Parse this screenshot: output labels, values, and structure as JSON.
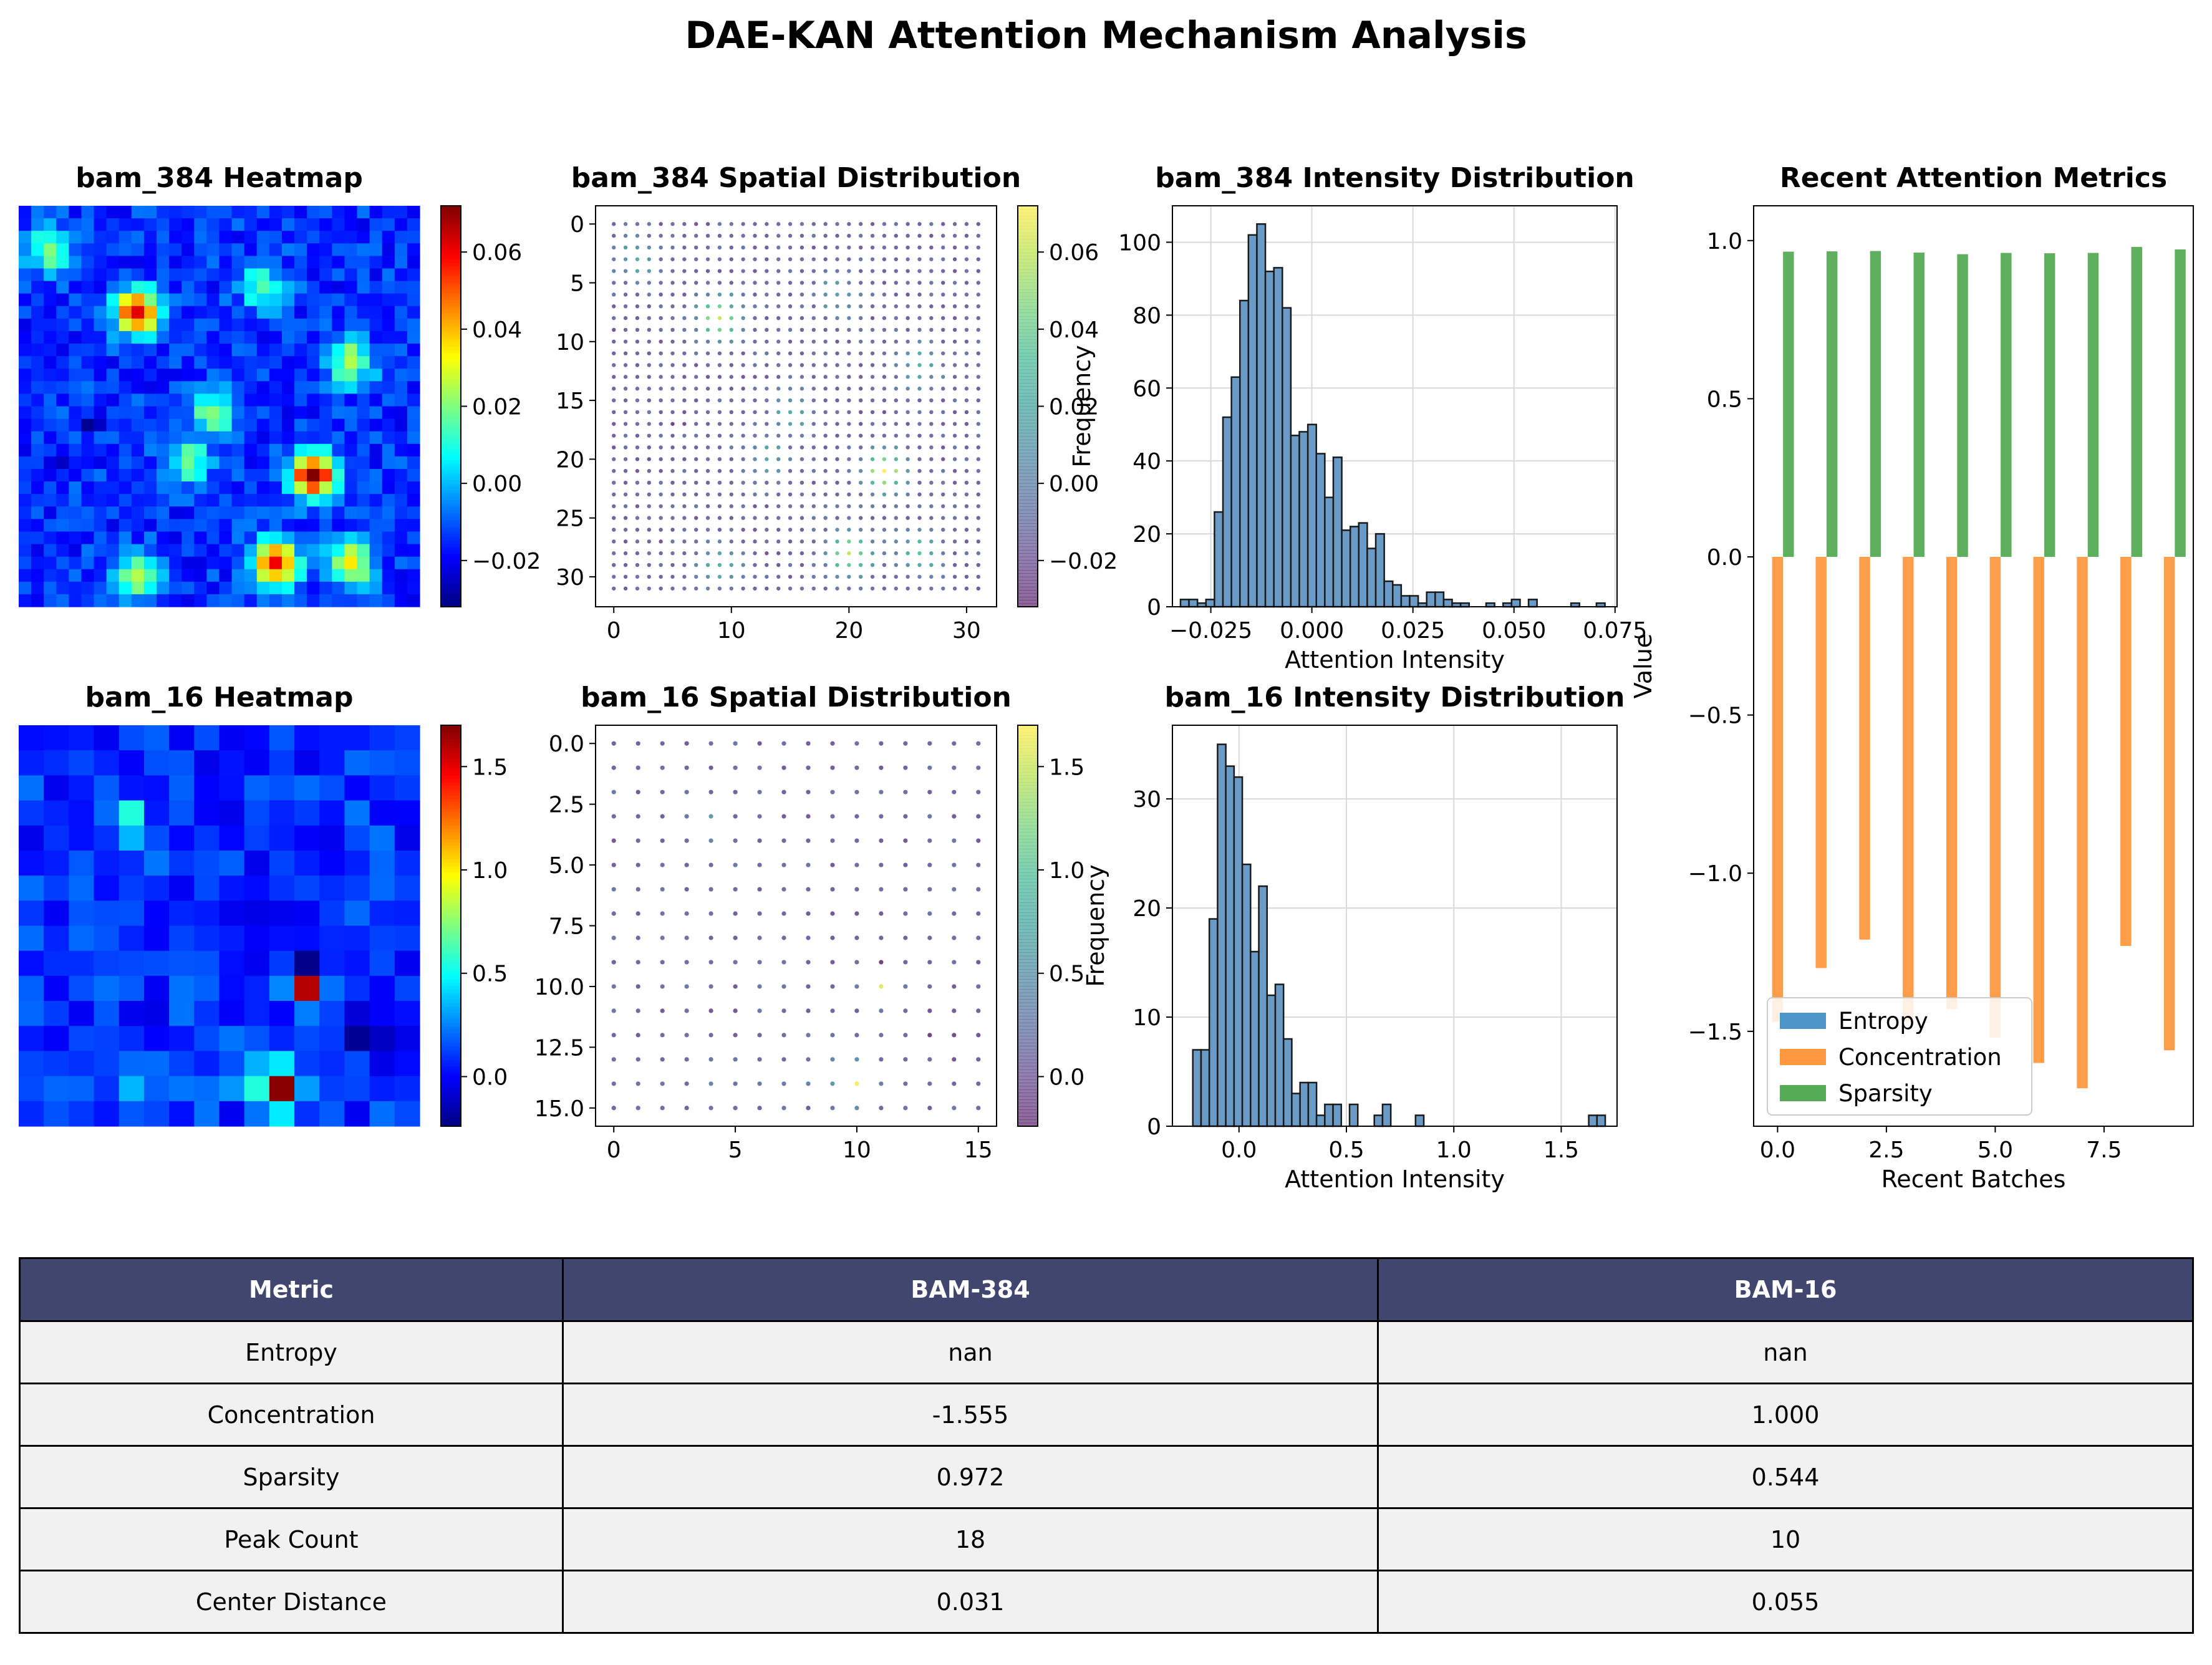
{
  "title": "DAE-KAN Attention Mechanism Analysis",
  "colors": {
    "entropy": "#4c95c8",
    "concentration": "#ff983f",
    "sparsity": "#55ac55",
    "table_header": "#40466e",
    "table_cell": "#f1f1f2",
    "hist_fill": "#6a9ac6"
  },
  "chart_data": [
    {
      "id": "heat384",
      "type": "heatmap",
      "title": "bam_384 Heatmap",
      "grid_size": 32,
      "colormap": "jet",
      "vmin": -0.032,
      "vmax": 0.072,
      "colorbar_ticks": [
        -0.02,
        0.0,
        0.02,
        0.04,
        0.06
      ],
      "colorbar_tick_labels": [
        "−0.02",
        "0.00",
        "0.02",
        "0.04",
        "0.06"
      ],
      "hotspots": [
        {
          "row": 8,
          "col": 9,
          "value": 0.062
        },
        {
          "row": 21,
          "col": 23,
          "value": 0.072
        },
        {
          "row": 28,
          "col": 20,
          "value": 0.06
        },
        {
          "row": 28,
          "col": 26,
          "value": 0.035
        },
        {
          "row": 16,
          "col": 15,
          "value": 0.02
        },
        {
          "row": 6,
          "col": 19,
          "value": 0.015
        },
        {
          "row": 12,
          "col": 26,
          "value": 0.025
        },
        {
          "row": 3,
          "col": 2,
          "value": 0.02
        },
        {
          "row": 29,
          "col": 9,
          "value": 0.025
        },
        {
          "row": 20,
          "col": 13,
          "value": 0.018
        }
      ],
      "lows": [
        {
          "row": 17,
          "col": 5,
          "value": -0.03
        },
        {
          "row": 20,
          "col": 3,
          "value": -0.025
        }
      ]
    },
    {
      "id": "scat384",
      "type": "scatter",
      "title": "bam_384 Spatial Distribution",
      "grid_size": 32,
      "colormap": "viridis",
      "vmin": -0.032,
      "vmax": 0.072,
      "x_ticks": [
        0,
        10,
        20,
        30
      ],
      "y_ticks": [
        0,
        5,
        10,
        15,
        20,
        25,
        30
      ],
      "colorbar_ticks": [
        -0.02,
        0.0,
        0.02,
        0.04,
        0.06
      ],
      "colorbar_tick_labels": [
        "−0.02",
        "0.00",
        "0.02",
        "0.04",
        "0.06"
      ]
    },
    {
      "id": "hist384",
      "type": "bar",
      "title": "bam_384 Intensity Distribution",
      "xlabel": "Attention Intensity",
      "ylabel": "Frequency",
      "xlim": [
        -0.0345,
        0.0755
      ],
      "ylim": [
        0,
        110
      ],
      "x_ticks": [
        -0.025,
        0.0,
        0.025,
        0.05,
        0.075
      ],
      "x_tick_labels": [
        "−0.025",
        "0.000",
        "0.025",
        "0.050",
        "0.075"
      ],
      "y_ticks": [
        0,
        20,
        40,
        60,
        80,
        100
      ],
      "bin_start": -0.0325,
      "bin_width": 0.0021,
      "counts": [
        2,
        2,
        1,
        2,
        26,
        52,
        63,
        84,
        102,
        105,
        92,
        93,
        82,
        47,
        48,
        50,
        42,
        30,
        41,
        21,
        22,
        23,
        16,
        20,
        7,
        6,
        3,
        3,
        1,
        4,
        4,
        2,
        1,
        1,
        0,
        0,
        1,
        0,
        1,
        2,
        0,
        2,
        0,
        0,
        0,
        0,
        1,
        0,
        0,
        1
      ]
    },
    {
      "id": "heat16",
      "type": "heatmap",
      "title": "bam_16 Heatmap",
      "grid_size": 16,
      "colormap": "jet",
      "vmin": -0.24,
      "vmax": 1.7,
      "colorbar_ticks": [
        0.0,
        0.5,
        1.0,
        1.5
      ],
      "colorbar_tick_labels": [
        "0.0",
        "0.5",
        "1.0",
        "1.5"
      ],
      "hotspots": [
        {
          "row": 10,
          "col": 11,
          "value": 1.6
        },
        {
          "row": 14,
          "col": 10,
          "value": 1.68
        },
        {
          "row": 14,
          "col": 9,
          "value": 0.55
        },
        {
          "row": 13,
          "col": 10,
          "value": 0.45
        },
        {
          "row": 3,
          "col": 4,
          "value": 0.55
        },
        {
          "row": 4,
          "col": 4,
          "value": 0.35
        },
        {
          "row": 14,
          "col": 4,
          "value": 0.35
        },
        {
          "row": 14,
          "col": 11,
          "value": 0.3
        }
      ],
      "lows": [
        {
          "row": 9,
          "col": 11,
          "value": -0.22
        },
        {
          "row": 12,
          "col": 13,
          "value": -0.2
        }
      ]
    },
    {
      "id": "scat16",
      "type": "scatter",
      "title": "bam_16 Spatial Distribution",
      "grid_size": 16,
      "colormap": "viridis",
      "vmin": -0.24,
      "vmax": 1.7,
      "x_ticks": [
        0,
        5,
        10,
        15
      ],
      "y_ticks": [
        0.0,
        2.5,
        5.0,
        7.5,
        10.0,
        12.5,
        15.0
      ],
      "y_tick_labels": [
        "0.0",
        "2.5",
        "5.0",
        "7.5",
        "10.0",
        "12.5",
        "15.0"
      ],
      "colorbar_ticks": [
        0.0,
        0.5,
        1.0,
        1.5
      ],
      "colorbar_tick_labels": [
        "0.0",
        "0.5",
        "1.0",
        "1.5"
      ]
    },
    {
      "id": "hist16",
      "type": "bar",
      "title": "bam_16 Intensity Distribution",
      "xlabel": "Attention Intensity",
      "ylabel": "Frequency",
      "xlim": [
        -0.31,
        1.76
      ],
      "ylim": [
        0,
        36.75
      ],
      "x_ticks": [
        0.0,
        0.5,
        1.0,
        1.5
      ],
      "x_tick_labels": [
        "0.0",
        "0.5",
        "1.0",
        "1.5"
      ],
      "y_ticks": [
        0,
        10,
        20,
        30
      ],
      "bin_start": -0.215,
      "bin_width": 0.0384,
      "counts": [
        7,
        7,
        19,
        35,
        33,
        32,
        24,
        16,
        22,
        12,
        13,
        8,
        3,
        4,
        4,
        1,
        2,
        2,
        0,
        2,
        0,
        0,
        1,
        2,
        0,
        0,
        0,
        1,
        0,
        0,
        0,
        0,
        0,
        0,
        0,
        0,
        0,
        0,
        0,
        0,
        0,
        0,
        0,
        0,
        0,
        0,
        0,
        0,
        1,
        1
      ]
    },
    {
      "id": "metrics",
      "type": "bar",
      "title": "Recent Attention Metrics",
      "xlabel": "Recent Batches",
      "ylabel": "Value",
      "xlim": [
        -0.55,
        9.55
      ],
      "ylim": [
        -1.8,
        1.11
      ],
      "x_ticks": [
        0.0,
        2.5,
        5.0,
        7.5
      ],
      "x_tick_labels": [
        "0.0",
        "2.5",
        "5.0",
        "7.5"
      ],
      "y_ticks": [
        -1.5,
        -1.0,
        -0.5,
        0.0,
        0.5,
        1.0
      ],
      "y_tick_labels": [
        "−1.5",
        "−1.0",
        "−0.5",
        "0.0",
        "0.5",
        "1.0"
      ],
      "categories": [
        0,
        1,
        2,
        3,
        4,
        5,
        6,
        7,
        8,
        9
      ],
      "legend_position": "lower-left",
      "series": [
        {
          "name": "Entropy",
          "color": "#4c95c8",
          "values": [
            0,
            0,
            0,
            0,
            0,
            0,
            0,
            0,
            0,
            0
          ]
        },
        {
          "name": "Concentration",
          "color": "#ff983f",
          "values": [
            -1.47,
            -1.3,
            -1.21,
            -1.47,
            -1.43,
            -1.52,
            -1.6,
            -1.68,
            -1.23,
            -1.56
          ]
        },
        {
          "name": "Sparsity",
          "color": "#55ac55",
          "values": [
            0.965,
            0.966,
            0.967,
            0.962,
            0.957,
            0.961,
            0.96,
            0.961,
            0.98,
            0.972
          ]
        }
      ]
    }
  ],
  "table": {
    "headers": [
      "Metric",
      "BAM-384",
      "BAM-16"
    ],
    "rows": [
      [
        "Entropy",
        "nan",
        "nan"
      ],
      [
        "Concentration",
        "-1.555",
        "1.000"
      ],
      [
        "Sparsity",
        "0.972",
        "0.544"
      ],
      [
        "Peak Count",
        "18",
        "10"
      ],
      [
        "Center Distance",
        "0.031",
        "0.055"
      ]
    ]
  }
}
